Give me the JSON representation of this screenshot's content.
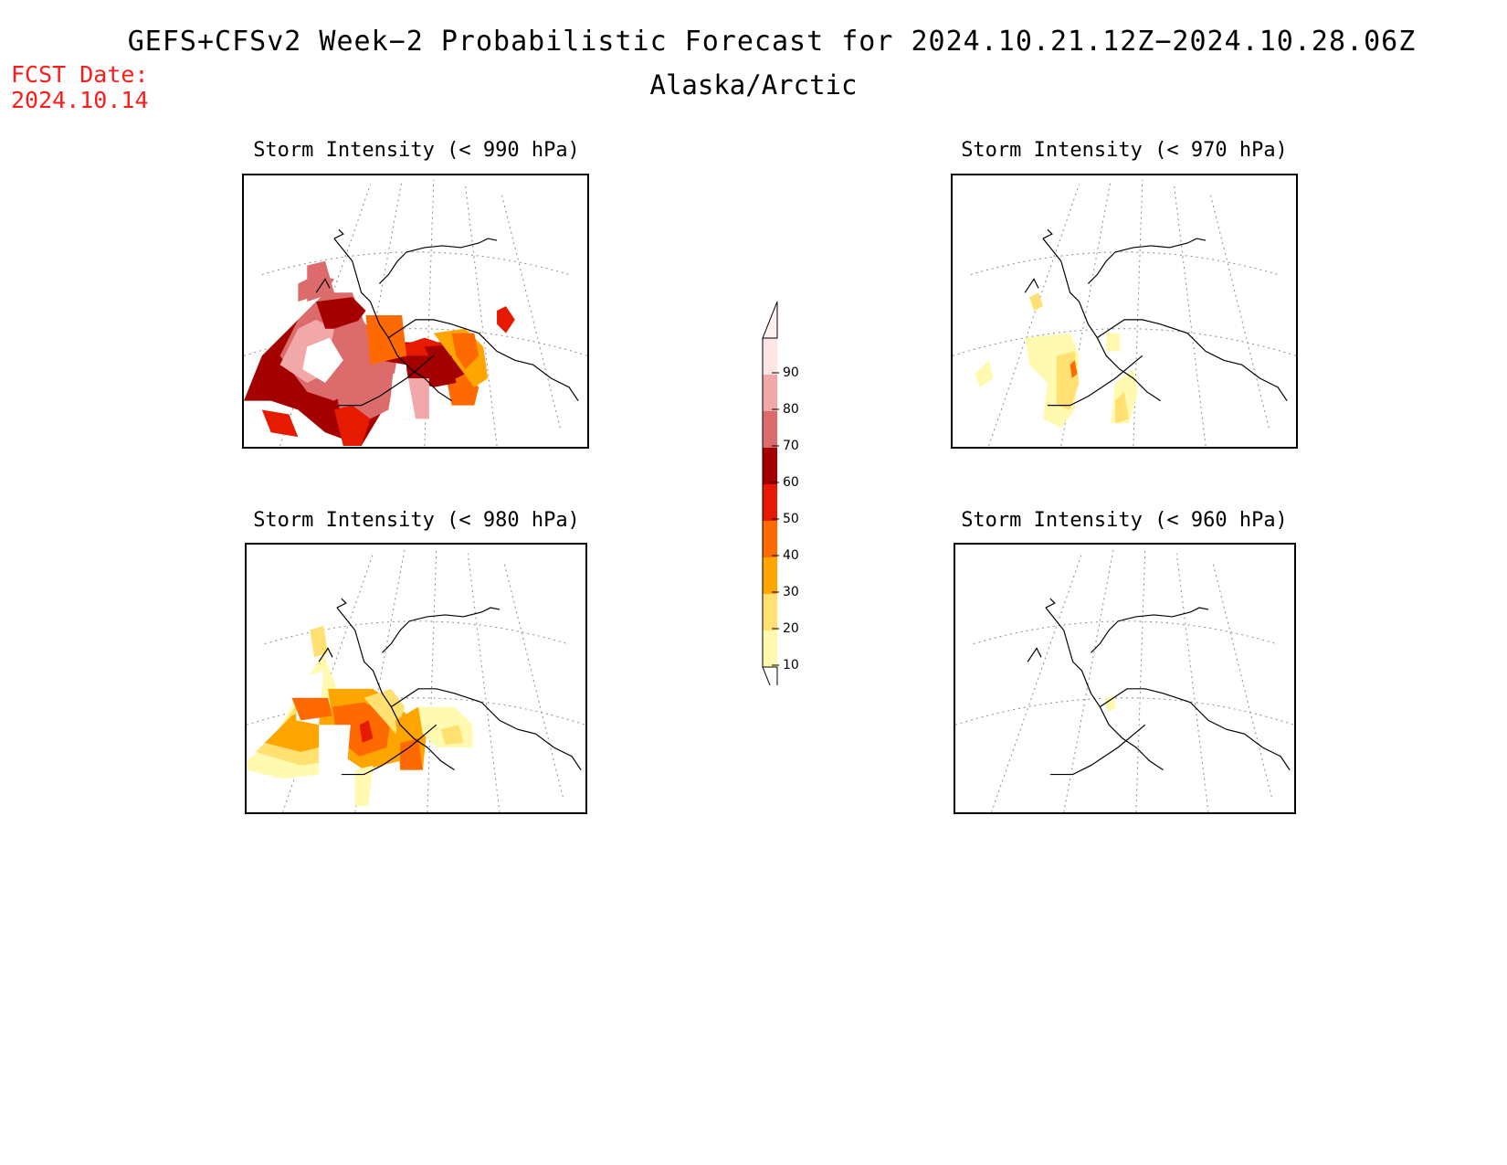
{
  "header": {
    "title": "GEFS+CFSv2 Week−2 Probabilistic Forecast for 2024.10.21.12Z−2024.10.28.06Z",
    "subtitle": "Alaska/Arctic",
    "fcst_label": "FCST Date:",
    "fcst_date": "2024.10.14"
  },
  "panels": [
    {
      "title": "Storm Intensity (< 990 hPa)"
    },
    {
      "title": "Storm Intensity (< 970 hPa)"
    },
    {
      "title": "Storm Intensity (< 980 hPa)"
    },
    {
      "title": "Storm Intensity (< 960 hPa)"
    }
  ],
  "colorbar": {
    "labels": [
      "90",
      "80",
      "70",
      "60",
      "50",
      "40",
      "30",
      "20",
      "10"
    ],
    "colors": {
      "90": "#ffe4e4",
      "80": "#f2a8a8",
      "70": "#dc6b6b",
      "60": "#a50000",
      "50": "#e51a00",
      "40": "#ff6a00",
      "30": "#ffa500",
      "20": "#ffe070",
      "10": "#fffab0"
    }
  }
}
